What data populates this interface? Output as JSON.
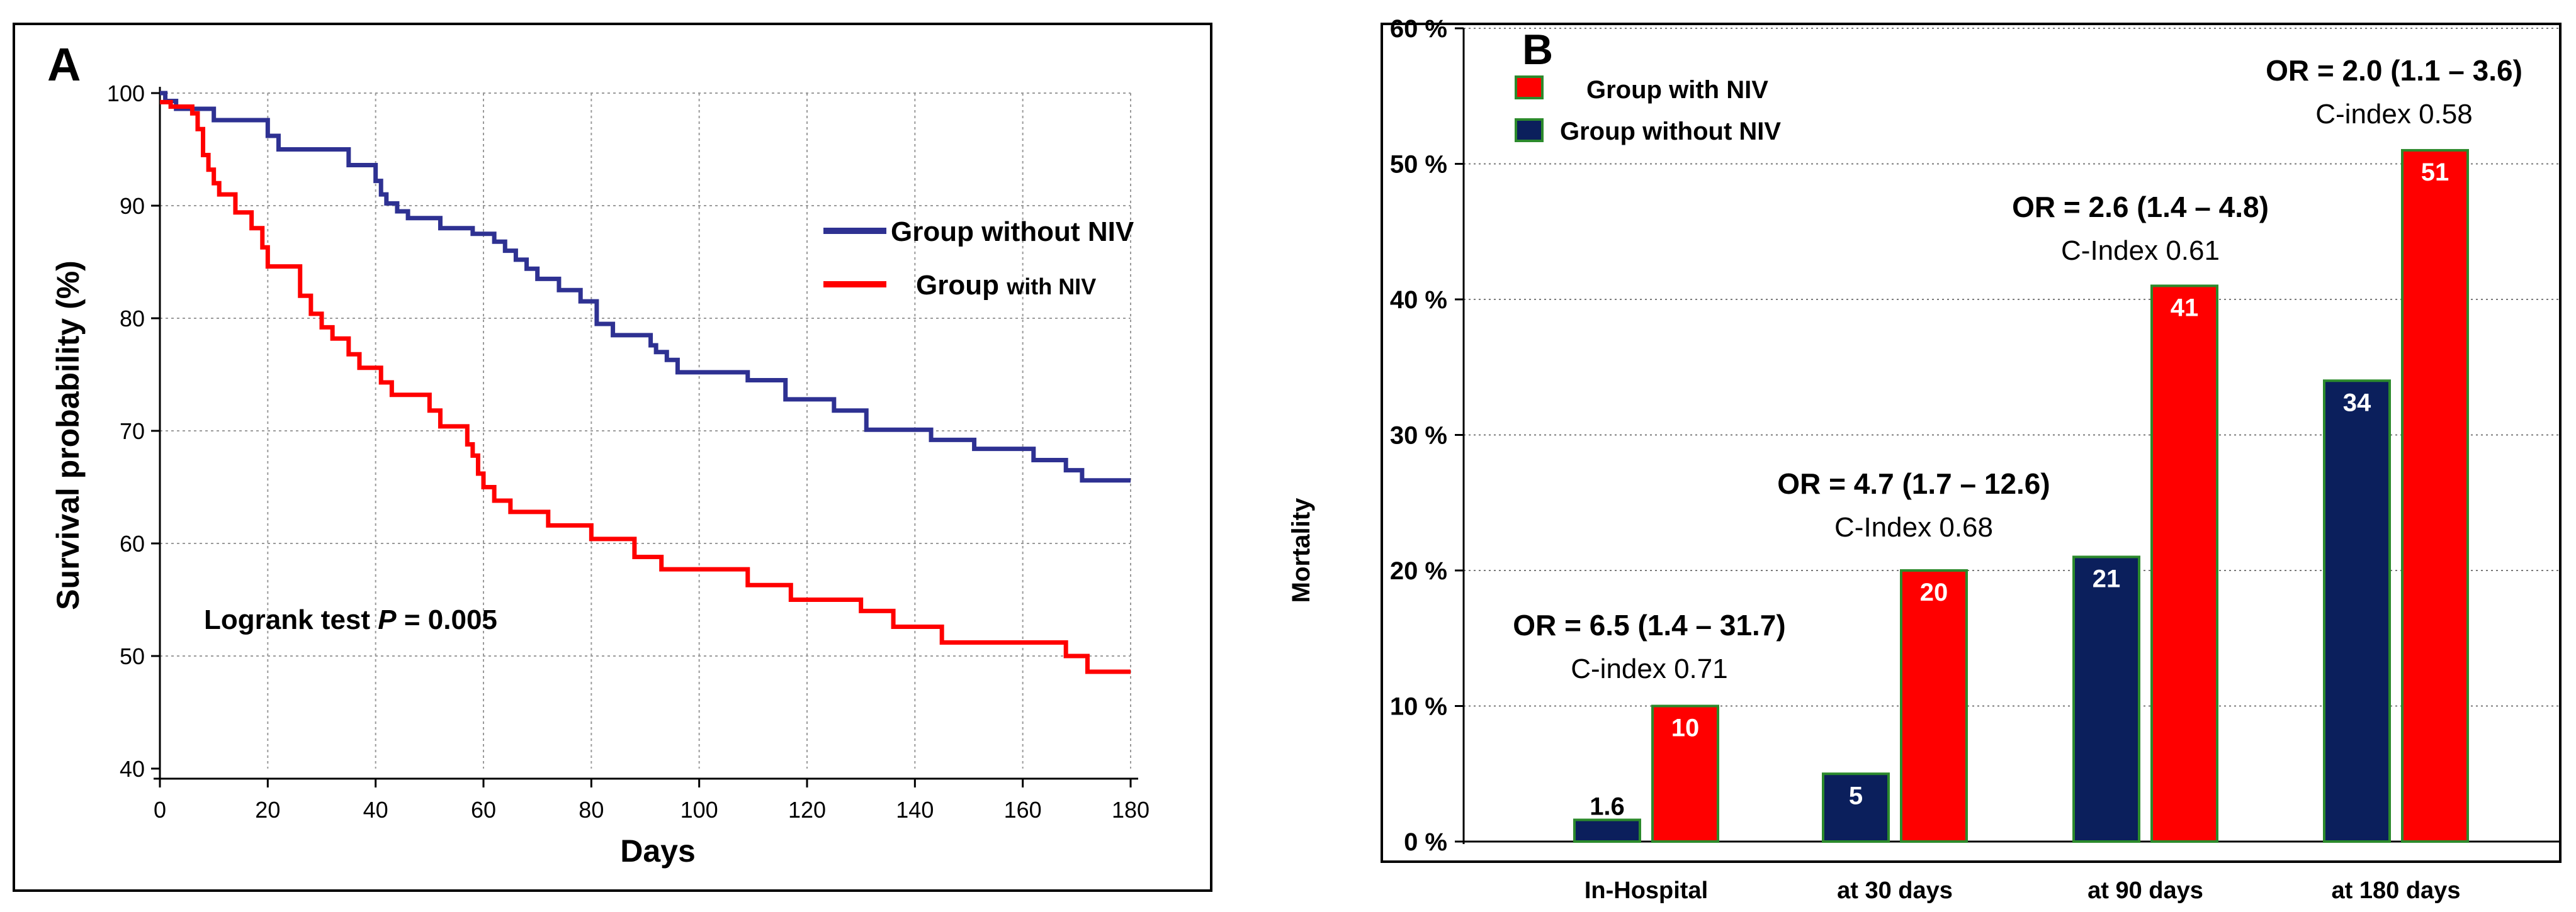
{
  "chart_data": [
    {
      "panel_label": "A",
      "type": "line",
      "subtype": "kaplan-meier",
      "title": "",
      "xlabel": "Days",
      "ylabel": "Survival probability (%)",
      "xlim": [
        0,
        180
      ],
      "ylim": [
        40,
        100
      ],
      "x_ticks": [
        "0",
        "20",
        "40",
        "60",
        "80",
        "100",
        "120",
        "140",
        "160",
        "180"
      ],
      "y_ticks": [
        "40",
        "50",
        "60",
        "70",
        "80",
        "90",
        "100"
      ],
      "grid": true,
      "annotation": {
        "prefix": "Logrank test ",
        "p_label": "P",
        "suffix": " = 0.005"
      },
      "legend_position": "right",
      "series": [
        {
          "name": "Group without NIV",
          "legend_label": "Group without NIV",
          "color": "#2e3192",
          "steps": [
            [
              0,
              100
            ],
            [
              1,
              99.3
            ],
            [
              3,
              98.6
            ],
            [
              10,
              97.6
            ],
            [
              20,
              96.2
            ],
            [
              22,
              95.0
            ],
            [
              35,
              93.6
            ],
            [
              40,
              92.2
            ],
            [
              41,
              91.0
            ],
            [
              42,
              90.2
            ],
            [
              44,
              89.5
            ],
            [
              46,
              88.9
            ],
            [
              52,
              88.0
            ],
            [
              58,
              87.5
            ],
            [
              62,
              86.8
            ],
            [
              64,
              86.0
            ],
            [
              66,
              85.2
            ],
            [
              68,
              84.4
            ],
            [
              70,
              83.5
            ],
            [
              74,
              82.5
            ],
            [
              78,
              81.5
            ],
            [
              81,
              79.5
            ],
            [
              84,
              78.5
            ],
            [
              91,
              77.6
            ],
            [
              92,
              77.0
            ],
            [
              94,
              76.3
            ],
            [
              96,
              75.2
            ],
            [
              109,
              74.5
            ],
            [
              116,
              72.8
            ],
            [
              125,
              71.8
            ],
            [
              131,
              70.1
            ],
            [
              143,
              69.2
            ],
            [
              151,
              68.4
            ],
            [
              162,
              67.4
            ],
            [
              168,
              66.5
            ],
            [
              171,
              65.6
            ],
            [
              180,
              65.6
            ]
          ]
        },
        {
          "name": "Group with NIV",
          "legend_label_main": "Group ",
          "legend_label_small": "with NIV",
          "color": "#ff0000",
          "steps": [
            [
              0,
              99.2
            ],
            [
              2,
              98.8
            ],
            [
              6,
              98.2
            ],
            [
              7,
              96.8
            ],
            [
              8,
              94.5
            ],
            [
              9,
              93.2
            ],
            [
              10,
              92.0
            ],
            [
              11,
              91.0
            ],
            [
              14,
              89.4
            ],
            [
              17,
              88.0
            ],
            [
              19,
              86.3
            ],
            [
              20,
              84.6
            ],
            [
              26,
              82.0
            ],
            [
              28,
              80.4
            ],
            [
              30,
              79.2
            ],
            [
              32,
              78.2
            ],
            [
              35,
              76.8
            ],
            [
              37,
              75.6
            ],
            [
              41,
              74.3
            ],
            [
              43,
              73.2
            ],
            [
              50,
              71.8
            ],
            [
              52,
              70.4
            ],
            [
              57,
              68.8
            ],
            [
              58,
              67.8
            ],
            [
              59,
              66.2
            ],
            [
              60,
              65.0
            ],
            [
              62,
              63.8
            ],
            [
              65,
              62.8
            ],
            [
              72,
              61.6
            ],
            [
              80,
              60.4
            ],
            [
              88,
              58.8
            ],
            [
              93,
              57.7
            ],
            [
              109,
              56.3
            ],
            [
              117,
              55.0
            ],
            [
              130,
              54.0
            ],
            [
              136,
              52.6
            ],
            [
              145,
              51.2
            ],
            [
              168,
              50.0
            ],
            [
              172,
              48.6
            ],
            [
              180,
              48.6
            ]
          ]
        }
      ]
    },
    {
      "panel_label": "B",
      "type": "bar",
      "title": "",
      "xlabel": "",
      "ylabel": "Mortality",
      "ylim": [
        0,
        60
      ],
      "y_ticks": [
        "0 %",
        "10 %",
        "20 %",
        "30 %",
        "40 %",
        "50 %",
        "60 %"
      ],
      "categories": [
        "In-Hospital",
        "at 30 days",
        "at 90 days",
        "at 180 days"
      ],
      "grid": true,
      "legend_position": "top-left",
      "legend": [
        "Group with NIV",
        "Group without NIV"
      ],
      "series": [
        {
          "name": "Group without NIV",
          "color": "#0b1f5c",
          "values": [
            1.6,
            5,
            21,
            34
          ],
          "value_labels": [
            "1.6",
            "5",
            "21",
            "34"
          ]
        },
        {
          "name": "Group with NIV",
          "color": "#ff0000",
          "values": [
            10,
            20,
            41,
            51
          ],
          "value_labels": [
            "10",
            "20",
            "41",
            "51"
          ]
        }
      ],
      "annotations": [
        {
          "or_text": "OR = 6.5 (1.4 – 31.7)",
          "cindex_text": "C-index 0.71"
        },
        {
          "or_text": "OR = 4.7 (1.7 – 12.6)",
          "cindex_text": "C-Index 0.68"
        },
        {
          "or_text": "OR = 2.6 (1.4 – 4.8)",
          "cindex_text": "C-Index 0.61"
        },
        {
          "or_text": "OR = 2.0 (1.1 – 3.6)",
          "cindex_text": "C-index 0.58"
        }
      ]
    }
  ]
}
